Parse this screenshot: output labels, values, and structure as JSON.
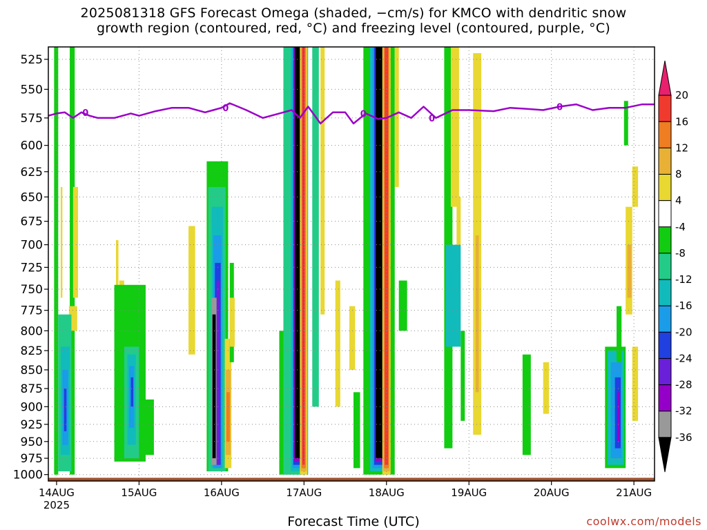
{
  "title": {
    "line1": "2025081318 GFS Forecast Omega (shaded, −cm/s) for KMCO with dendritic snow",
    "line2": "growth region (contoured, red, °C) and freezing level (contoured, purple, °C)"
  },
  "credit": "coolwx.com/models",
  "colors": {
    "freezing_level": "#9b00c8",
    "terrain": "#a0522d",
    "grid": "#888888",
    "strong_lift_core": "#000000"
  },
  "chart_data": {
    "type": "heatmap",
    "xlabel": "Forecast Time (UTC)",
    "ylabel": "",
    "x_ticks": [
      {
        "label": "14AUG",
        "sub": "2025"
      },
      {
        "label": "15AUG",
        "sub": ""
      },
      {
        "label": "16AUG",
        "sub": ""
      },
      {
        "label": "17AUG",
        "sub": ""
      },
      {
        "label": "18AUG",
        "sub": ""
      },
      {
        "label": "19AUG",
        "sub": ""
      },
      {
        "label": "20AUG",
        "sub": ""
      },
      {
        "label": "21AUG",
        "sub": ""
      }
    ],
    "y_ticks": [
      525,
      550,
      575,
      600,
      625,
      650,
      675,
      700,
      725,
      750,
      775,
      800,
      825,
      850,
      875,
      900,
      925,
      950,
      975,
      1000
    ],
    "xlim_days": [
      13.9,
      21.25
    ],
    "ylim_mb": [
      515,
      1010
    ],
    "y_scale": "log",
    "grid": true,
    "colorbar": {
      "levels": [
        "20",
        "16",
        "12",
        "8",
        "4",
        "-4",
        "-8",
        "-12",
        "-16",
        "-20",
        "-24",
        "-28",
        "-32",
        "-36"
      ],
      "colors": [
        "#e8206e",
        "#f03a2e",
        "#ef7d22",
        "#e8b035",
        "#e9d732",
        "#ffffff",
        "#11cc11",
        "#22cc88",
        "#11bbbb",
        "#1a9ce8",
        "#2040e0",
        "#6a1fd8",
        "#9500c8",
        "#999999",
        "#000000"
      ]
    },
    "freezing_level_label": "0",
    "freezing_level": [
      [
        13.9,
        573
      ],
      [
        14.0,
        571
      ],
      [
        14.1,
        570
      ],
      [
        14.2,
        575
      ],
      [
        14.3,
        570
      ],
      [
        14.4,
        573
      ],
      [
        14.5,
        575
      ],
      [
        14.7,
        575
      ],
      [
        14.9,
        571
      ],
      [
        15.0,
        573
      ],
      [
        15.2,
        569
      ],
      [
        15.4,
        566
      ],
      [
        15.6,
        566
      ],
      [
        15.8,
        570
      ],
      [
        15.9,
        568
      ],
      [
        16.0,
        566
      ],
      [
        16.1,
        562
      ],
      [
        16.2,
        565
      ],
      [
        16.3,
        568
      ],
      [
        16.5,
        575
      ],
      [
        16.7,
        571
      ],
      [
        16.85,
        568
      ],
      [
        16.95,
        575
      ],
      [
        17.05,
        565
      ],
      [
        17.2,
        580
      ],
      [
        17.35,
        570
      ],
      [
        17.5,
        570
      ],
      [
        17.6,
        580
      ],
      [
        17.75,
        571
      ],
      [
        17.9,
        576
      ],
      [
        18.0,
        575
      ],
      [
        18.15,
        570
      ],
      [
        18.3,
        575
      ],
      [
        18.45,
        565
      ],
      [
        18.6,
        575
      ],
      [
        18.8,
        568
      ],
      [
        19.0,
        568
      ],
      [
        19.3,
        569
      ],
      [
        19.5,
        566
      ],
      [
        19.7,
        567
      ],
      [
        19.9,
        568
      ],
      [
        20.1,
        565
      ],
      [
        20.3,
        563
      ],
      [
        20.5,
        568
      ],
      [
        20.7,
        566
      ],
      [
        20.9,
        566
      ],
      [
        21.1,
        563
      ],
      [
        21.25,
        563
      ]
    ],
    "omega_cells": [
      {
        "t": [
          13.97,
          14.02
        ],
        "p": [
          515,
          1000
        ],
        "v": -6
      },
      {
        "t": [
          14.16,
          14.22
        ],
        "p": [
          515,
          1000
        ],
        "v": -6
      },
      {
        "t": [
          14.05,
          14.07
        ],
        "p": [
          640,
          760
        ],
        "v": 5
      },
      {
        "t": [
          14.2,
          14.26
        ],
        "p": [
          640,
          760
        ],
        "v": 5
      },
      {
        "t": [
          14.15,
          14.25
        ],
        "p": [
          770,
          800
        ],
        "v": 5
      },
      {
        "t": [
          14.02,
          14.18
        ],
        "p": [
          780,
          995
        ],
        "v": -8
      },
      {
        "t": [
          14.05,
          14.16
        ],
        "p": [
          820,
          970
        ],
        "v": -12
      },
      {
        "t": [
          14.07,
          14.14
        ],
        "p": [
          850,
          955
        ],
        "v": -17
      },
      {
        "t": [
          14.09,
          14.12
        ],
        "p": [
          875,
          935
        ],
        "v": -21
      },
      {
        "t": [
          14.1,
          14.11
        ],
        "p": [
          890,
          915
        ],
        "v": -26
      },
      {
        "t": [
          14.72,
          14.75
        ],
        "p": [
          695,
          750
        ],
        "v": 5
      },
      {
        "t": [
          14.76,
          14.82
        ],
        "p": [
          740,
          800
        ],
        "v": 5
      },
      {
        "t": [
          14.78,
          14.8
        ],
        "p": [
          770,
          840
        ],
        "v": 5
      },
      {
        "t": [
          14.7,
          15.08
        ],
        "p": [
          745,
          980
        ],
        "v": -6
      },
      {
        "t": [
          14.82,
          15.0
        ],
        "p": [
          820,
          975
        ],
        "v": -8
      },
      {
        "t": [
          14.86,
          14.96
        ],
        "p": [
          830,
          955
        ],
        "v": -12
      },
      {
        "t": [
          14.88,
          14.94
        ],
        "p": [
          845,
          930
        ],
        "v": -17
      },
      {
        "t": [
          14.9,
          14.93
        ],
        "p": [
          860,
          900
        ],
        "v": -22
      },
      {
        "t": [
          15.0,
          15.18
        ],
        "p": [
          890,
          970
        ],
        "v": -6
      },
      {
        "t": [
          15.6,
          15.68
        ],
        "p": [
          680,
          830
        ],
        "v": 5
      },
      {
        "t": [
          15.82,
          16.08
        ],
        "p": [
          615,
          995
        ],
        "v": -6
      },
      {
        "t": [
          15.84,
          16.05
        ],
        "p": [
          640,
          995
        ],
        "v": -8
      },
      {
        "t": [
          15.88,
          16.02
        ],
        "p": [
          660,
          990
        ],
        "v": -12
      },
      {
        "t": [
          15.9,
          16.0
        ],
        "p": [
          690,
          990
        ],
        "v": -17
      },
      {
        "t": [
          15.92,
          15.99
        ],
        "p": [
          720,
          985
        ],
        "v": -22
      },
      {
        "t": [
          15.94,
          15.98
        ],
        "p": [
          740,
          985
        ],
        "v": -27
      },
      {
        "t": [
          15.88,
          15.94
        ],
        "p": [
          760,
          985
        ],
        "v": -32
      },
      {
        "t": [
          15.89,
          15.93
        ],
        "p": [
          780,
          975
        ],
        "v": -40
      },
      {
        "t": [
          16.04,
          16.12
        ],
        "p": [
          810,
          990
        ],
        "v": 5
      },
      {
        "t": [
          16.05,
          16.11
        ],
        "p": [
          850,
          970
        ],
        "v": 9
      },
      {
        "t": [
          16.06,
          16.1
        ],
        "p": [
          880,
          950
        ],
        "v": 13
      },
      {
        "t": [
          16.1,
          16.15
        ],
        "p": [
          720,
          840
        ],
        "v": -6
      },
      {
        "t": [
          16.1,
          16.16
        ],
        "p": [
          760,
          820
        ],
        "v": 5
      },
      {
        "t": [
          16.7,
          17.0
        ],
        "p": [
          800,
          1000
        ],
        "v": -6
      },
      {
        "t": [
          16.75,
          17.05
        ],
        "p": [
          515,
          1000
        ],
        "v": -8
      },
      {
        "t": [
          16.84,
          16.98
        ],
        "p": [
          515,
          995
        ],
        "v": -12
      },
      {
        "t": [
          16.86,
          16.97
        ],
        "p": [
          515,
          990
        ],
        "v": -17
      },
      {
        "t": [
          16.87,
          16.96
        ],
        "p": [
          515,
          985
        ],
        "v": -22
      },
      {
        "t": [
          16.88,
          16.95
        ],
        "p": [
          515,
          980
        ],
        "v": -28
      },
      {
        "t": [
          16.89,
          16.95
        ],
        "p": [
          515,
          975
        ],
        "v": -40
      },
      {
        "t": [
          16.95,
          17.04
        ],
        "p": [
          515,
          1000
        ],
        "v": 5
      },
      {
        "t": [
          16.96,
          17.03
        ],
        "p": [
          515,
          995
        ],
        "v": 9
      },
      {
        "t": [
          16.97,
          17.02
        ],
        "p": [
          515,
          990
        ],
        "v": 14
      },
      {
        "t": [
          16.98,
          17.01
        ],
        "p": [
          515,
          985
        ],
        "v": 18
      },
      {
        "t": [
          16.985,
          17.0
        ],
        "p": [
          515,
          980
        ],
        "v": 22
      },
      {
        "t": [
          17.1,
          17.18
        ],
        "p": [
          515,
          900
        ],
        "v": -8
      },
      {
        "t": [
          17.2,
          17.25
        ],
        "p": [
          515,
          780
        ],
        "v": 5
      },
      {
        "t": [
          17.38,
          17.44
        ],
        "p": [
          740,
          900
        ],
        "v": 5
      },
      {
        "t": [
          17.55,
          17.62
        ],
        "p": [
          770,
          850
        ],
        "v": 5
      },
      {
        "t": [
          17.6,
          17.68
        ],
        "p": [
          880,
          990
        ],
        "v": -6
      },
      {
        "t": [
          17.72,
          18.1
        ],
        "p": [
          515,
          1000
        ],
        "v": -6
      },
      {
        "t": [
          17.8,
          18.0
        ],
        "p": [
          515,
          995
        ],
        "v": -12
      },
      {
        "t": [
          17.83,
          17.98
        ],
        "p": [
          515,
          990
        ],
        "v": -17
      },
      {
        "t": [
          17.85,
          17.97
        ],
        "p": [
          515,
          985
        ],
        "v": -22
      },
      {
        "t": [
          17.86,
          17.96
        ],
        "p": [
          515,
          980
        ],
        "v": -28
      },
      {
        "t": [
          17.87,
          17.95
        ],
        "p": [
          515,
          975
        ],
        "v": -40
      },
      {
        "t": [
          17.95,
          18.05
        ],
        "p": [
          515,
          1000
        ],
        "v": 5
      },
      {
        "t": [
          17.96,
          18.04
        ],
        "p": [
          515,
          995
        ],
        "v": 9
      },
      {
        "t": [
          17.97,
          18.03
        ],
        "p": [
          515,
          990
        ],
        "v": 14
      },
      {
        "t": [
          17.98,
          18.02
        ],
        "p": [
          515,
          985
        ],
        "v": 19
      },
      {
        "t": [
          18.1,
          18.15
        ],
        "p": [
          515,
          640
        ],
        "v": 5
      },
      {
        "t": [
          18.15,
          18.25
        ],
        "p": [
          740,
          800
        ],
        "v": -6
      },
      {
        "t": [
          18.7,
          18.8
        ],
        "p": [
          515,
          960
        ],
        "v": -6
      },
      {
        "t": [
          18.72,
          18.9
        ],
        "p": [
          700,
          820
        ],
        "v": -12
      },
      {
        "t": [
          18.75,
          18.85
        ],
        "p": [
          720,
          800
        ],
        "v": -14
      },
      {
        "t": [
          18.78,
          18.88
        ],
        "p": [
          515,
          660
        ],
        "v": 5
      },
      {
        "t": [
          18.85,
          18.9
        ],
        "p": [
          650,
          700
        ],
        "v": 5
      },
      {
        "t": [
          18.9,
          18.95
        ],
        "p": [
          800,
          920
        ],
        "v": -6
      },
      {
        "t": [
          19.05,
          19.15
        ],
        "p": [
          520,
          940
        ],
        "v": 5
      },
      {
        "t": [
          19.08,
          19.12
        ],
        "p": [
          690,
          880
        ],
        "v": 9
      },
      {
        "t": [
          19.65,
          19.75
        ],
        "p": [
          830,
          970
        ],
        "v": -6
      },
      {
        "t": [
          19.9,
          19.97
        ],
        "p": [
          840,
          910
        ],
        "v": 5
      },
      {
        "t": [
          20.65,
          20.9
        ],
        "p": [
          820,
          990
        ],
        "v": -6
      },
      {
        "t": [
          20.68,
          20.88
        ],
        "p": [
          825,
          985
        ],
        "v": -12
      },
      {
        "t": [
          20.72,
          20.85
        ],
        "p": [
          840,
          975
        ],
        "v": -17
      },
      {
        "t": [
          20.77,
          20.84
        ],
        "p": [
          860,
          960
        ],
        "v": -22
      },
      {
        "t": [
          20.8,
          20.83
        ],
        "p": [
          880,
          950
        ],
        "v": -30
      },
      {
        "t": [
          20.79,
          20.85
        ],
        "p": [
          770,
          840
        ],
        "v": -6
      },
      {
        "t": [
          20.88,
          20.93
        ],
        "p": [
          560,
          600
        ],
        "v": -6
      },
      {
        "t": [
          20.9,
          20.98
        ],
        "p": [
          660,
          780
        ],
        "v": 5
      },
      {
        "t": [
          20.92,
          20.97
        ],
        "p": [
          700,
          760
        ],
        "v": 9
      },
      {
        "t": [
          20.98,
          21.05
        ],
        "p": [
          620,
          660
        ],
        "v": 5
      },
      {
        "t": [
          20.98,
          21.05
        ],
        "p": [
          820,
          920
        ],
        "v": 5
      }
    ]
  }
}
